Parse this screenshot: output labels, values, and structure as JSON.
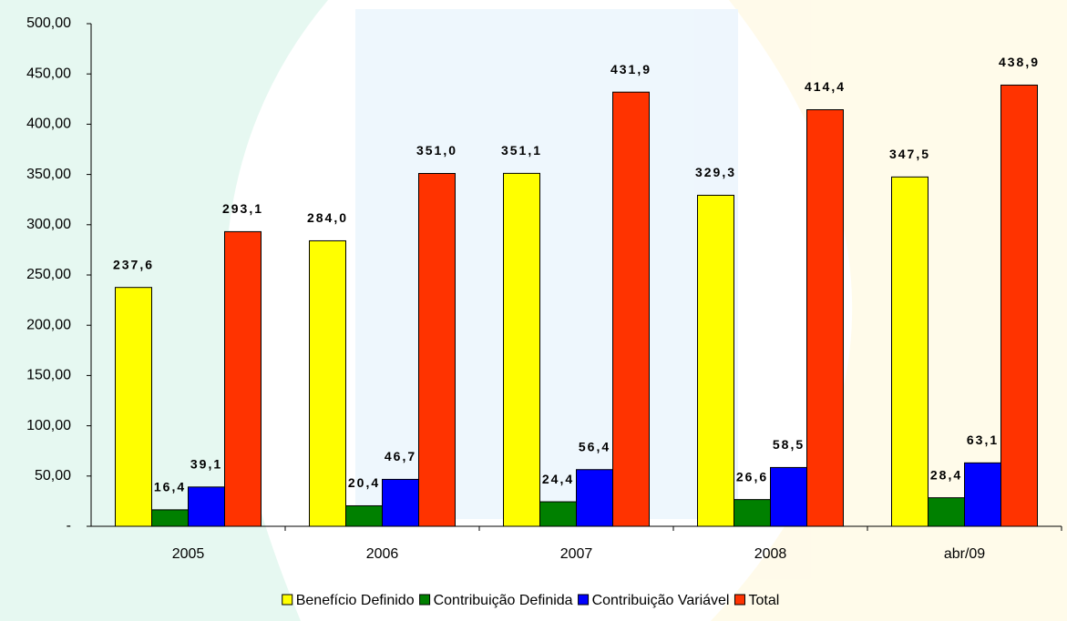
{
  "chart_data": {
    "type": "bar",
    "categories": [
      "2005",
      "2006",
      "2007",
      "2008",
      "abr/09"
    ],
    "series": [
      {
        "name": "Benefício Definido",
        "color": "#ffff00",
        "values": [
          237.6,
          284.0,
          351.1,
          329.3,
          347.5
        ],
        "value_labels": [
          "237,6",
          "284,0",
          "351,1",
          "329,3",
          "347,5"
        ]
      },
      {
        "name": "Contribuição Definida",
        "color": "#008000",
        "values": [
          16.4,
          20.4,
          24.4,
          26.6,
          28.4
        ],
        "value_labels": [
          "16,4",
          "20,4",
          "24,4",
          "26,6",
          "28,4"
        ]
      },
      {
        "name": "Contribuição Variável",
        "color": "#0000ff",
        "values": [
          39.1,
          46.7,
          56.4,
          58.5,
          63.1
        ],
        "value_labels": [
          "39,1",
          "46,7",
          "56,4",
          "58,5",
          "63,1"
        ]
      },
      {
        "name": "Total",
        "color": "#ff3300",
        "values": [
          293.1,
          351.0,
          431.9,
          414.4,
          438.9
        ],
        "value_labels": [
          "293,1",
          "351,0",
          "431,9",
          "414,4",
          "438,9"
        ]
      }
    ],
    "ylim": [
      0,
      500
    ],
    "yticks": [
      {
        "value": 0,
        "label": "-"
      },
      {
        "value": 50,
        "label": "50,00"
      },
      {
        "value": 100,
        "label": "100,00"
      },
      {
        "value": 150,
        "label": "150,00"
      },
      {
        "value": 200,
        "label": "200,00"
      },
      {
        "value": 250,
        "label": "250,00"
      },
      {
        "value": 300,
        "label": "300,00"
      },
      {
        "value": 350,
        "label": "350,00"
      },
      {
        "value": 400,
        "label": "400,00"
      },
      {
        "value": 450,
        "label": "450,00"
      },
      {
        "value": 500,
        "label": "500,00"
      }
    ],
    "legend": "bottom"
  }
}
